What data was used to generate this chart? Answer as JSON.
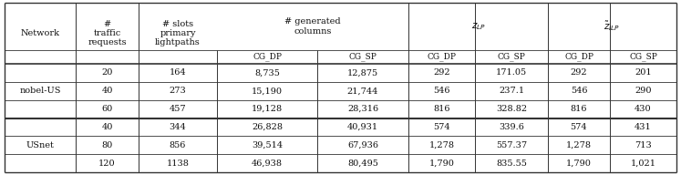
{
  "rows": [
    [
      "nobel-US",
      "20",
      "164",
      "8,735",
      "12,875",
      "292",
      "171.05",
      "292",
      "201"
    ],
    [
      "nobel-US",
      "40",
      "273",
      "15,190",
      "21,744",
      "546",
      "237.1",
      "546",
      "290"
    ],
    [
      "nobel-US",
      "60",
      "457",
      "19,128",
      "28,316",
      "816",
      "328.82",
      "816",
      "430"
    ],
    [
      "USnet",
      "40",
      "344",
      "26,828",
      "40,931",
      "574",
      "339.6",
      "574",
      "431"
    ],
    [
      "USnet",
      "80",
      "856",
      "39,514",
      "67,936",
      "1,278",
      "557.37",
      "1,278",
      "713"
    ],
    [
      "USnet",
      "120",
      "1138",
      "46,938",
      "80,495",
      "1,790",
      "835.55",
      "1,790",
      "1,021"
    ]
  ],
  "line_color": "#333333",
  "font_size": 7.0,
  "font_size_small": 6.5
}
